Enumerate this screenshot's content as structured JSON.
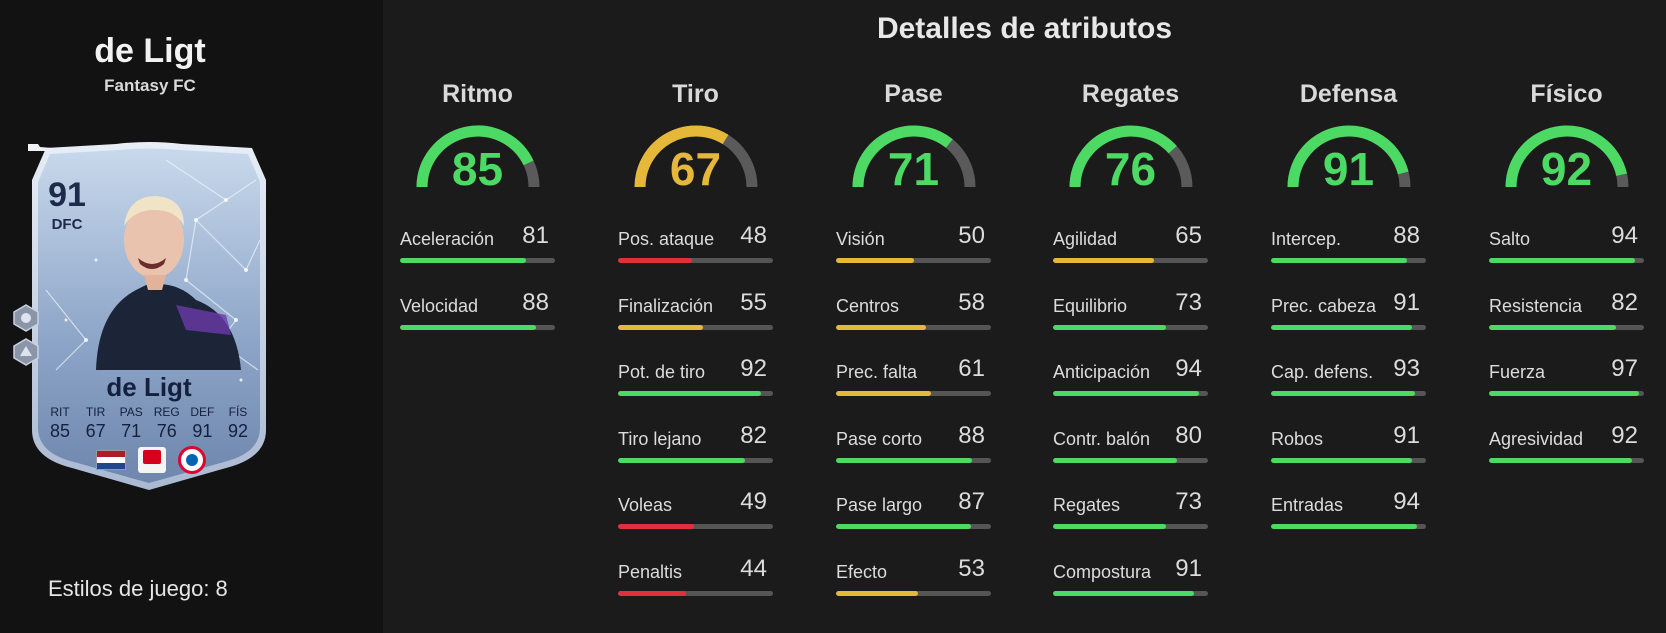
{
  "player": {
    "name": "de Ligt",
    "subtitle": "Fantasy FC",
    "playstyles_label": "Estilos de juego: 8"
  },
  "card": {
    "rating": "91",
    "position": "DFC",
    "name": "de Ligt",
    "stats": [
      {
        "label": "RIT",
        "value": "85"
      },
      {
        "label": "TIR",
        "value": "67"
      },
      {
        "label": "PAS",
        "value": "71"
      },
      {
        "label": "REG",
        "value": "76"
      },
      {
        "label": "DEF",
        "value": "91"
      },
      {
        "label": "FÍS",
        "value": "92"
      }
    ],
    "nation_flag": "netherlands-flag",
    "league_badge": "bundesliga-badge",
    "club_badge": "bayern-badge",
    "chem_icons": [
      "chemistry-style-icon",
      "playstyle-icon"
    ]
  },
  "title": "Detalles de atributos",
  "colors": {
    "green": "#4cd964",
    "yellow": "#e6b83a",
    "red": "#e0303e",
    "track": "#555555"
  },
  "categories": [
    {
      "name": "Ritmo",
      "value": 85,
      "attributes": [
        {
          "name": "Aceleración",
          "value": 81
        },
        {
          "name": "Velocidad",
          "value": 88
        }
      ]
    },
    {
      "name": "Tiro",
      "value": 67,
      "attributes": [
        {
          "name": "Pos. ataque",
          "value": 48
        },
        {
          "name": "Finalización",
          "value": 55
        },
        {
          "name": "Pot. de tiro",
          "value": 92
        },
        {
          "name": "Tiro lejano",
          "value": 82
        },
        {
          "name": "Voleas",
          "value": 49
        },
        {
          "name": "Penaltis",
          "value": 44
        }
      ]
    },
    {
      "name": "Pase",
      "value": 71,
      "attributes": [
        {
          "name": "Visión",
          "value": 50
        },
        {
          "name": "Centros",
          "value": 58
        },
        {
          "name": "Prec. falta",
          "value": 61
        },
        {
          "name": "Pase corto",
          "value": 88
        },
        {
          "name": "Pase largo",
          "value": 87
        },
        {
          "name": "Efecto",
          "value": 53
        }
      ]
    },
    {
      "name": "Regates",
      "value": 76,
      "attributes": [
        {
          "name": "Agilidad",
          "value": 65
        },
        {
          "name": "Equilibrio",
          "value": 73
        },
        {
          "name": "Anticipación",
          "value": 94
        },
        {
          "name": "Contr. balón",
          "value": 80
        },
        {
          "name": "Regates",
          "value": 73
        },
        {
          "name": "Compostura",
          "value": 91
        }
      ]
    },
    {
      "name": "Defensa",
      "value": 91,
      "attributes": [
        {
          "name": "Intercep.",
          "value": 88
        },
        {
          "name": "Prec. cabeza",
          "value": 91
        },
        {
          "name": "Cap. defens.",
          "value": 93
        },
        {
          "name": "Robos",
          "value": 91
        },
        {
          "name": "Entradas",
          "value": 94
        }
      ]
    },
    {
      "name": "Físico",
      "value": 92,
      "attributes": [
        {
          "name": "Salto",
          "value": 94
        },
        {
          "name": "Resistencia",
          "value": 82
        },
        {
          "name": "Fuerza",
          "value": 97
        },
        {
          "name": "Agresividad",
          "value": 92
        }
      ]
    }
  ]
}
